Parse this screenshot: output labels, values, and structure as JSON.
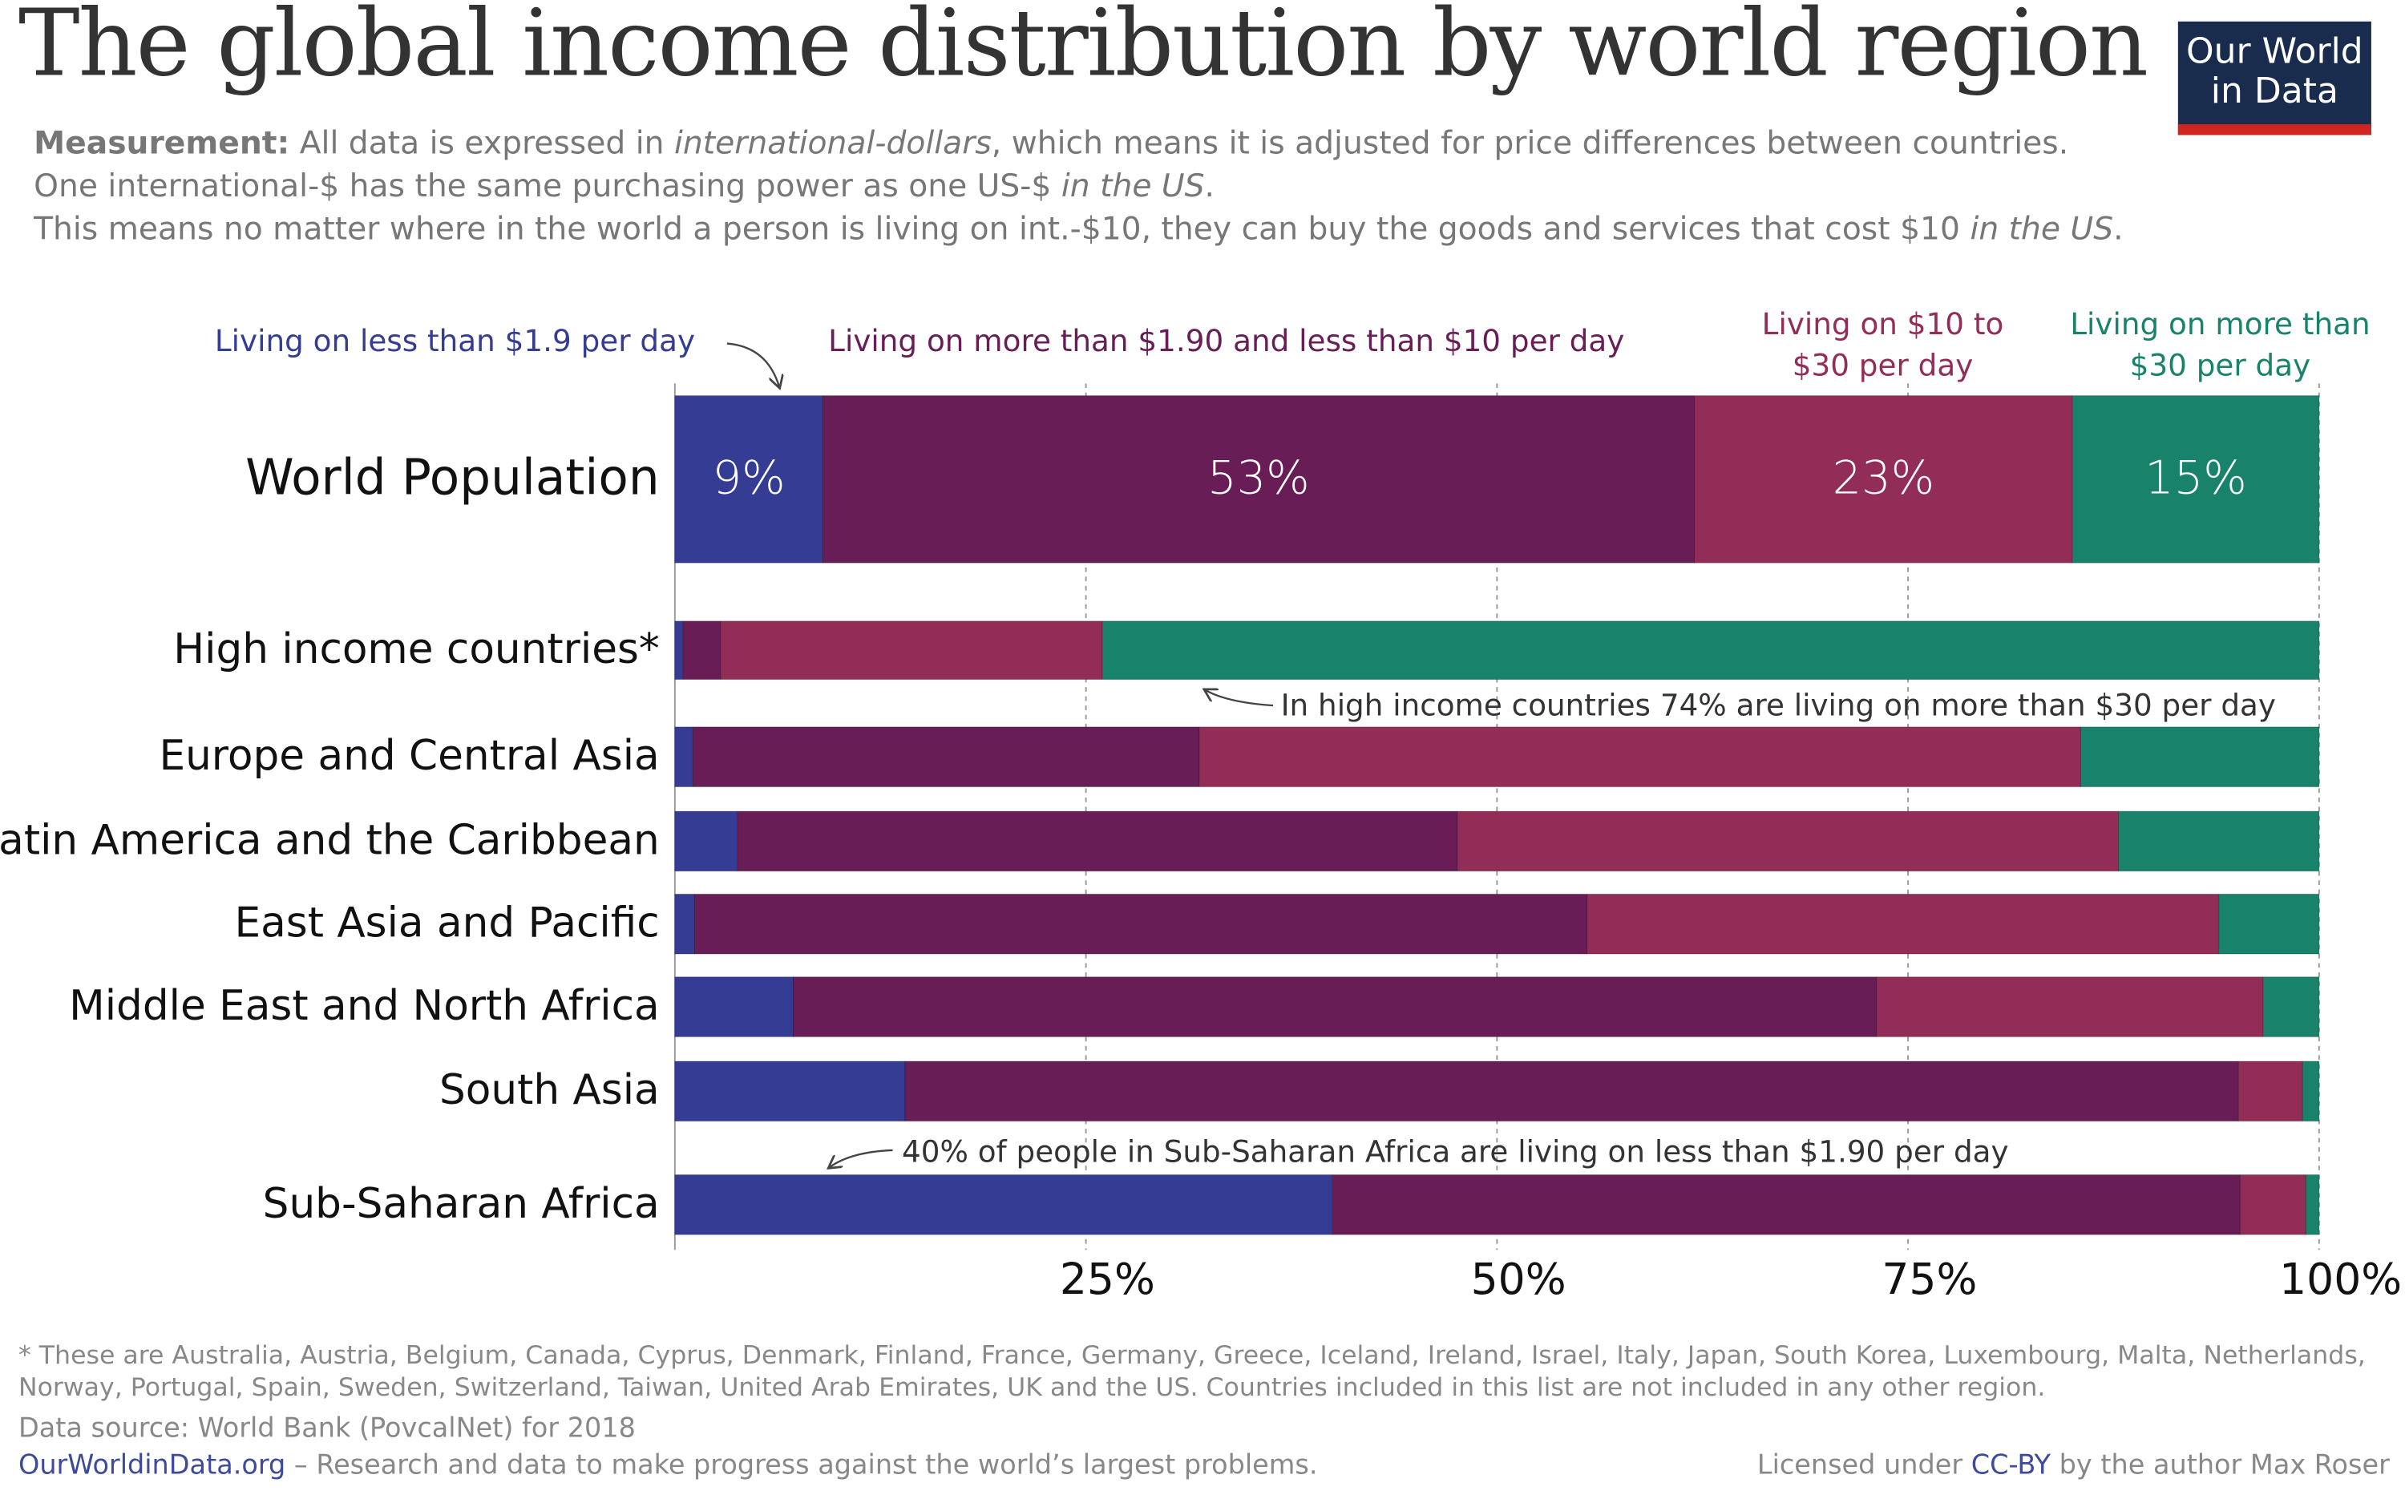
{
  "header": {
    "title": "The global income distribution by world region",
    "subtitle": [
      "Measurement:",
      " All data is expressed in ",
      "international-dollars",
      ", which means it is adjusted for price differences between countries.",
      "One international-$ has the same purchasing power as one US-$ ",
      "in the US",
      ".",
      "This means no matter where in the world a person is living on int.-$10, they can buy the goods and services that cost $10 ",
      "in the US",
      "."
    ],
    "logo": [
      "Our World",
      "in Data"
    ]
  },
  "chart_data": {
    "type": "stacked-bar-horizontal",
    "categories": [
      "World Population",
      "High income countries*",
      "Europe and Central Asia",
      "Latin America and the Caribbean",
      "East Asia and Pacific",
      "Middle East and North Africa",
      "South Asia",
      "Sub-Saharan Africa"
    ],
    "series": [
      {
        "name": "Living on less than $1.9 per day",
        "color": "#353c94",
        "values": [
          9,
          0.5,
          1.1,
          3.8,
          1.2,
          7.2,
          14.0,
          40
        ],
        "value_labels": [
          "9%",
          null,
          null,
          null,
          null,
          null,
          null,
          null
        ]
      },
      {
        "name": "Living on more than $1.90 and less than $10 per day",
        "color": "#681d56",
        "values": [
          53,
          2.3,
          30.8,
          43.8,
          54.3,
          65.9,
          81.1,
          55.2
        ],
        "value_labels": [
          "53%",
          null,
          null,
          null,
          null,
          null,
          null,
          null
        ]
      },
      {
        "name": "Living on $10 to $30 per day",
        "color": "#922d57",
        "values": [
          23,
          23.2,
          53.6,
          40.2,
          38.4,
          23.5,
          3.9,
          4.0
        ],
        "value_labels": [
          "23%",
          null,
          null,
          null,
          null,
          null,
          null,
          null
        ]
      },
      {
        "name": "Living on more than $30 per day",
        "color": "#18826a",
        "values": [
          15,
          74,
          14.5,
          12.2,
          6.1,
          3.4,
          1.0,
          0.8
        ],
        "value_labels": [
          "15%",
          null,
          null,
          null,
          null,
          null,
          null,
          null
        ]
      }
    ],
    "xlim": [
      0,
      100
    ],
    "xticks": [
      {
        "value": 25,
        "label": "25%"
      },
      {
        "value": 50,
        "label": "50%"
      },
      {
        "value": 75,
        "label": "75%"
      },
      {
        "value": 100,
        "label": "100%"
      }
    ],
    "grid": true,
    "annotations": [
      "In high income countries 74% are living on more than $30 per day",
      "40% of people in Sub-Saharan Africa are living on less than $1.90 per day"
    ]
  },
  "footer": {
    "note": "* These are Australia, Austria, Belgium, Canada, Cyprus, Denmark, Finland, France, Germany, Greece, Iceland, Ireland, Israel, Italy, Japan, South Korea, Luxembourg, Malta, Netherlands, Norway, Portugal, Spain, Sweden, Switzerland, Taiwan, United Arab Emirates, UK and the US.  Countries included in this list are not included in any other region.",
    "source": "Data source: World Bank (PovcalNet) for 2018",
    "site": "OurWorldinData.org",
    "tagline": " – Research and data to make progress against the world’s largest problems.",
    "license": [
      "Licensed under ",
      "CC-BY",
      " by the author Max Roser"
    ]
  }
}
